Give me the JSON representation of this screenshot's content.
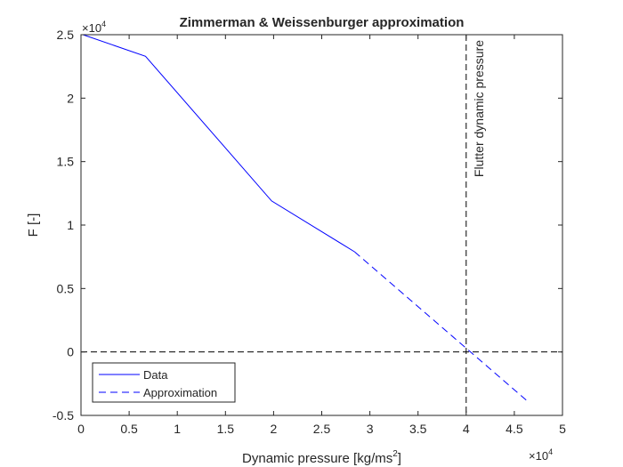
{
  "chart_data": {
    "type": "line",
    "title": "Zimmerman & Weissenburger approximation",
    "xlabel": "Dynamic pressure [kg/ms",
    "xlabel_superscript": "2",
    "xlabel_suffix": "]",
    "ylabel": "F [-]",
    "xlim": [
      0,
      5
    ],
    "ylim": [
      -0.5,
      2.5
    ],
    "x_exponent_base": "×10",
    "x_exponent": "4",
    "y_exponent_base": "×10",
    "y_exponent": "4",
    "xticks": [
      0,
      0.5,
      1,
      1.5,
      2,
      2.5,
      3,
      3.5,
      4,
      4.5,
      5
    ],
    "xtick_labels": [
      "0",
      "0.5",
      "1",
      "1.5",
      "2",
      "2.5",
      "3",
      "3.5",
      "4",
      "4.5",
      "5"
    ],
    "yticks": [
      -0.5,
      0,
      0.5,
      1,
      1.5,
      2,
      2.5
    ],
    "ytick_labels": [
      "-0.5",
      "0",
      "0.5",
      "1",
      "1.5",
      "2",
      "2.5"
    ],
    "grid": false,
    "legend_position": "bottom-left",
    "series": [
      {
        "name": "Data",
        "style": "solid",
        "color": "#0000ff",
        "x": [
          0.02,
          0.67,
          1.98,
          2.84
        ],
        "y": [
          2.5,
          2.33,
          1.19,
          0.79
        ]
      },
      {
        "name": "Approximation",
        "style": "dashed",
        "color": "#0000ff",
        "x": [
          2.84,
          4.64
        ],
        "y": [
          0.79,
          -0.39
        ]
      }
    ],
    "reference_lines": [
      {
        "orientation": "vertical",
        "x": 4.0,
        "label": "Flutter dynamic pressure",
        "color": "#000000",
        "style": "dashed"
      },
      {
        "orientation": "horizontal",
        "y": 0,
        "label": "",
        "color": "#000000",
        "style": "dashed"
      }
    ]
  }
}
